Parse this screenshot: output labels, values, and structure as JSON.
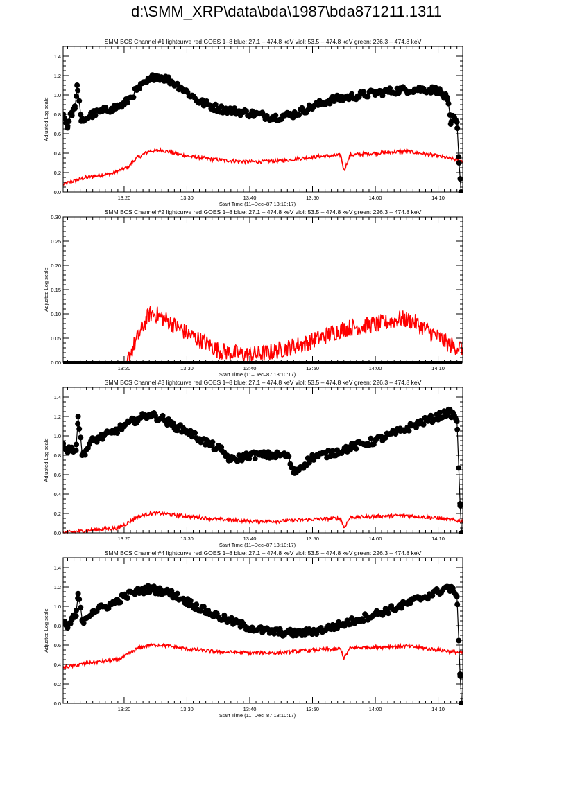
{
  "page": {
    "title": "d:\\SMM_XRP\\data\\bda\\1987\\bda871211.1311"
  },
  "colors": {
    "goes": "#ff0000",
    "bcs": "#000000",
    "axes": "#000000"
  },
  "chart_data": [
    {
      "type": "line",
      "title": "SMM BCS Channel #1 lightcurve  red:GOES 1–8  blue: 27.1 – 474.8 keV  viol: 53.5 – 474.8 keV  green: 226.3 – 474.8 keV",
      "xlabel": "Start Time (11–Dec–87 13:10:17)",
      "ylabel": "Adjusted Log scale",
      "xlim": [
        "13:10:17",
        "14:13:55"
      ],
      "ylim": [
        0,
        1.5
      ],
      "yticks": [
        "0.0",
        "0.2",
        "0.4",
        "0.6",
        "0.8",
        "1.0",
        "1.2",
        "1.4"
      ],
      "xticks": [
        "13:20",
        "13:30",
        "13:40",
        "13:50",
        "14:00",
        "14:10"
      ],
      "grid": false,
      "series": [
        {
          "name": "GOES 1–8",
          "color": "#ff0000",
          "style": "line",
          "x": [
            "13:10:17",
            "13:14:00",
            "13:18:00",
            "13:20:30",
            "13:22:00",
            "13:24:00",
            "13:26:00",
            "13:30:00",
            "13:35:00",
            "13:40:00",
            "13:45:00",
            "13:50:00",
            "13:54:30",
            "13:55:00",
            "13:56:00",
            "14:00:00",
            "14:05:00",
            "14:10:00",
            "14:13:50"
          ],
          "values": [
            0.08,
            0.15,
            0.19,
            0.25,
            0.35,
            0.42,
            0.43,
            0.37,
            0.33,
            0.31,
            0.32,
            0.36,
            0.38,
            0.22,
            0.38,
            0.4,
            0.42,
            0.37,
            0.32
          ]
        },
        {
          "color": "#000000",
          "style": "line+markers",
          "x": [
            "13:10:17",
            "13:11:00",
            "13:11:40",
            "13:12:10",
            "13:12:30",
            "13:13:10",
            "13:15:00",
            "13:18:00",
            "13:20:00",
            "13:22:00",
            "13:24:00",
            "13:25:00",
            "13:27:00",
            "13:29:00",
            "13:32:00",
            "13:35:00",
            "13:38:00",
            "13:41:00",
            "13:44:00",
            "13:47:00",
            "13:50:00",
            "13:53:00",
            "13:56:00",
            "14:00:00",
            "14:04:00",
            "14:07:00",
            "14:10:00",
            "14:11:30",
            "14:12:00",
            "14:12:30",
            "14:13:00",
            "14:13:20",
            "14:13:40"
          ],
          "values": [
            0.8,
            0.68,
            0.82,
            0.86,
            1.1,
            0.73,
            0.8,
            0.86,
            0.9,
            1.05,
            1.15,
            1.2,
            1.16,
            1.08,
            0.93,
            0.86,
            0.83,
            0.8,
            0.77,
            0.8,
            0.88,
            0.95,
            0.98,
            1.02,
            1.05,
            1.06,
            1.05,
            0.95,
            0.7,
            0.78,
            0.72,
            0.3,
            0.0
          ]
        }
      ]
    },
    {
      "type": "line",
      "title": "SMM BCS Channel #2 lightcurve  red:GOES 1–8  blue: 27.1 – 474.8 keV  viol: 53.5 – 474.8 keV  green: 226.3 – 474.8 keV",
      "xlabel": "Start Time (11–Dec–87 13:10:17)",
      "ylabel": "Adjusted Log scale",
      "xlim": [
        "13:10:17",
        "14:13:55"
      ],
      "ylim": [
        0,
        0.3
      ],
      "yticks": [
        "0.00",
        "0.05",
        "0.10",
        "0.15",
        "0.20",
        "0.25",
        "0.30"
      ],
      "xticks": [
        "13:20",
        "13:30",
        "13:40",
        "13:50",
        "14:00",
        "14:10"
      ],
      "grid": false,
      "series": [
        {
          "name": "GOES 1–8",
          "color": "#ff0000",
          "style": "line",
          "x": [
            "13:10:17",
            "13:20:30",
            "13:21:00",
            "13:22:30",
            "13:24:00",
            "13:25:00",
            "13:27:00",
            "13:30:00",
            "13:33:00",
            "13:35:00",
            "13:37:00",
            "13:40:00",
            "13:43:00",
            "13:46:00",
            "13:49:00",
            "13:52:00",
            "13:55:00",
            "13:58:00",
            "14:01:00",
            "14:04:00",
            "14:06:00",
            "14:09:00",
            "14:12:00",
            "14:13:50"
          ],
          "values": [
            0.0,
            0.0,
            0.02,
            0.06,
            0.1,
            0.1,
            0.085,
            0.06,
            0.04,
            0.025,
            0.02,
            0.015,
            0.02,
            0.03,
            0.04,
            0.055,
            0.07,
            0.075,
            0.08,
            0.09,
            0.085,
            0.06,
            0.035,
            0.03
          ]
        },
        {
          "color": "#000000",
          "style": "line+markers",
          "x": [
            "13:10:17",
            "14:13:50"
          ],
          "values": [
            0.0,
            0.0
          ]
        }
      ]
    },
    {
      "type": "line",
      "title": "SMM BCS Channel #3 lightcurve  red:GOES 1–8  blue: 27.1 – 474.8 keV  viol: 53.5 – 474.8 keV  green: 226.3 – 474.8 keV",
      "xlabel": "Start Time (11–Dec–87 13:10:17)",
      "ylabel": "Adjusted Log scale",
      "xlim": [
        "13:10:17",
        "14:13:55"
      ],
      "ylim": [
        0,
        1.5
      ],
      "yticks": [
        "0.0",
        "0.2",
        "0.4",
        "0.6",
        "0.8",
        "1.0",
        "1.2",
        "1.4"
      ],
      "xticks": [
        "13:20",
        "13:30",
        "13:40",
        "13:50",
        "14:00",
        "14:10"
      ],
      "grid": false,
      "series": [
        {
          "name": "GOES 1–8",
          "color": "#ff0000",
          "style": "line",
          "x": [
            "13:10:17",
            "13:15:00",
            "13:19:00",
            "13:20:30",
            "13:22:00",
            "13:24:00",
            "13:26:00",
            "13:30:00",
            "13:35:00",
            "13:40:00",
            "13:45:00",
            "13:50:00",
            "13:54:30",
            "13:55:00",
            "13:56:00",
            "14:00:00",
            "14:05:00",
            "14:10:00",
            "14:13:50"
          ],
          "values": [
            0.0,
            0.03,
            0.05,
            0.1,
            0.16,
            0.2,
            0.2,
            0.17,
            0.14,
            0.12,
            0.12,
            0.14,
            0.15,
            0.05,
            0.16,
            0.17,
            0.18,
            0.15,
            0.12
          ]
        },
        {
          "color": "#000000",
          "style": "line+markers",
          "x": [
            "13:10:17",
            "13:11:00",
            "13:11:40",
            "13:12:20",
            "13:12:40",
            "13:13:20",
            "13:15:00",
            "13:18:00",
            "13:20:00",
            "13:22:00",
            "13:24:00",
            "13:26:00",
            "13:28:00",
            "13:30:00",
            "13:32:00",
            "13:34:00",
            "13:35:30",
            "13:37:00",
            "13:40:00",
            "13:43:00",
            "13:46:00",
            "13:47:00",
            "13:50:00",
            "13:53:00",
            "13:56:00",
            "14:00:00",
            "14:04:00",
            "14:07:00",
            "14:10:00",
            "14:11:30",
            "14:12:30",
            "14:13:00",
            "14:13:30",
            "14:13:45"
          ],
          "values": [
            0.92,
            0.83,
            0.88,
            0.85,
            1.2,
            0.8,
            0.95,
            1.03,
            1.1,
            1.17,
            1.22,
            1.18,
            1.1,
            1.05,
            0.97,
            0.9,
            0.85,
            0.75,
            0.8,
            0.8,
            0.8,
            0.62,
            0.78,
            0.82,
            0.88,
            0.95,
            1.05,
            1.13,
            1.2,
            1.24,
            1.22,
            1.15,
            0.3,
            0.0
          ]
        }
      ]
    },
    {
      "type": "line",
      "title": "SMM BCS Channel #4 lightcurve  red:GOES 1–8  blue: 27.1 – 474.8 keV  viol: 53.5 – 474.8 keV  green: 226.3 – 474.8 keV",
      "xlabel": "Start Time (11–Dec–87 13:10:17)",
      "ylabel": "Adjusted Log scale",
      "xlim": [
        "13:10:17",
        "14:13:55"
      ],
      "ylim": [
        0,
        1.5
      ],
      "yticks": [
        "0.0",
        "0.2",
        "0.4",
        "0.6",
        "0.8",
        "1.0",
        "1.2",
        "1.4"
      ],
      "xticks": [
        "13:20",
        "13:30",
        "13:40",
        "13:50",
        "14:00",
        "14:10"
      ],
      "grid": false,
      "series": [
        {
          "name": "GOES 1–8",
          "color": "#ff0000",
          "style": "line",
          "x": [
            "13:10:17",
            "13:15:00",
            "13:19:00",
            "13:20:30",
            "13:22:00",
            "13:24:00",
            "13:26:00",
            "13:30:00",
            "13:35:00",
            "13:40:00",
            "13:45:00",
            "13:50:00",
            "13:54:30",
            "13:55:00",
            "13:56:00",
            "14:00:00",
            "14:05:00",
            "14:10:00",
            "14:13:50"
          ],
          "values": [
            0.37,
            0.42,
            0.45,
            0.5,
            0.56,
            0.6,
            0.6,
            0.56,
            0.53,
            0.52,
            0.52,
            0.55,
            0.56,
            0.46,
            0.57,
            0.58,
            0.59,
            0.55,
            0.52
          ]
        },
        {
          "color": "#000000",
          "style": "line+markers",
          "x": [
            "13:10:17",
            "13:11:00",
            "13:11:40",
            "13:12:20",
            "13:12:40",
            "13:13:20",
            "13:15:00",
            "13:18:00",
            "13:20:00",
            "13:22:00",
            "13:24:00",
            "13:26:00",
            "13:28:00",
            "13:30:00",
            "13:33:00",
            "13:36:00",
            "13:39:00",
            "13:42:00",
            "13:45:00",
            "13:48:00",
            "13:51:00",
            "13:54:00",
            "13:57:00",
            "14:00:00",
            "14:04:00",
            "14:07:00",
            "14:10:00",
            "14:11:30",
            "14:12:30",
            "14:13:00",
            "14:13:30",
            "14:13:45"
          ],
          "values": [
            0.84,
            0.78,
            0.86,
            0.9,
            1.13,
            0.85,
            0.95,
            1.02,
            1.1,
            1.15,
            1.18,
            1.16,
            1.12,
            1.05,
            0.95,
            0.87,
            0.8,
            0.75,
            0.73,
            0.72,
            0.75,
            0.8,
            0.86,
            0.92,
            1.0,
            1.08,
            1.15,
            1.2,
            1.15,
            1.1,
            0.3,
            0.0
          ]
        }
      ]
    }
  ]
}
